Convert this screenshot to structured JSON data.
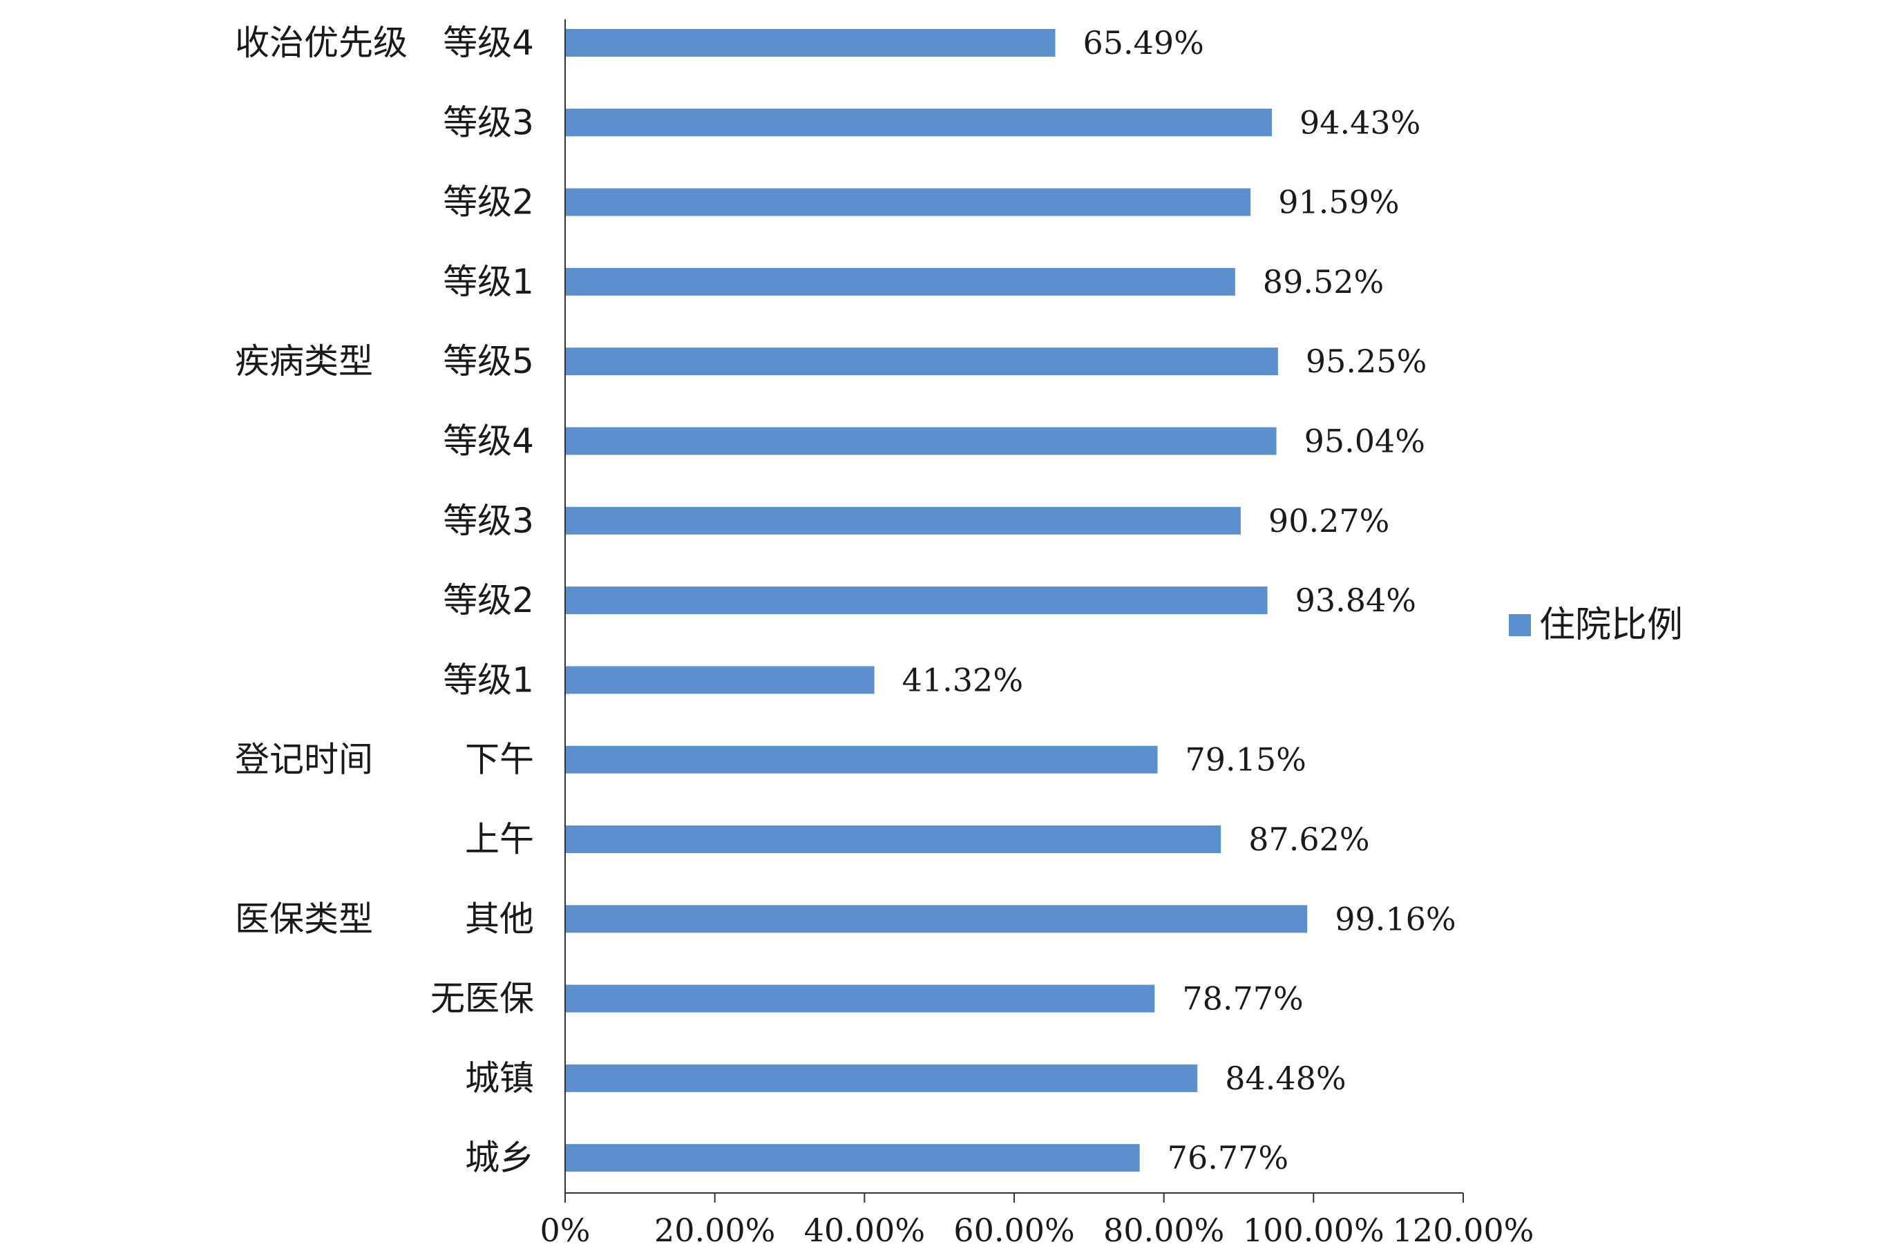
{
  "chart_data": {
    "type": "bar",
    "orientation": "horizontal",
    "series": [
      {
        "name": "住院比例",
        "color": "#5b8fcd",
        "values": [
          65.49,
          94.43,
          91.59,
          89.52,
          95.25,
          95.04,
          90.27,
          93.84,
          41.32,
          79.15,
          87.62,
          99.16,
          78.77,
          84.48,
          76.77
        ]
      }
    ],
    "categories": [
      "等级4",
      "等级3",
      "等级2",
      "等级1",
      "等级5",
      "等级4",
      "等级3",
      "等级2",
      "等级1",
      "下午",
      "上午",
      "其他",
      "无医保",
      "城镇",
      "城乡"
    ],
    "value_labels": [
      "65.49%",
      "94.43%",
      "91.59%",
      "89.52%",
      "95.25%",
      "95.04%",
      "90.27%",
      "93.84%",
      "41.32%",
      "79.15%",
      "87.62%",
      "99.16%",
      "78.77%",
      "84.48%",
      "76.77%"
    ],
    "groups": [
      {
        "label": "收治优先级",
        "category_index": 0
      },
      {
        "label": "疾病类型",
        "category_index": 4
      },
      {
        "label": "登记时间",
        "category_index": 9
      },
      {
        "label": "医保类型",
        "category_index": 11
      }
    ],
    "xlim": [
      0,
      120
    ],
    "xticks": [
      0,
      20,
      40,
      60,
      80,
      100,
      120
    ],
    "xtick_labels": [
      "0%",
      "20.00%",
      "40.00%",
      "60.00%",
      "80.00%",
      "100.00%",
      "120.00%"
    ],
    "grid": false,
    "legend": {
      "position": "right"
    }
  }
}
